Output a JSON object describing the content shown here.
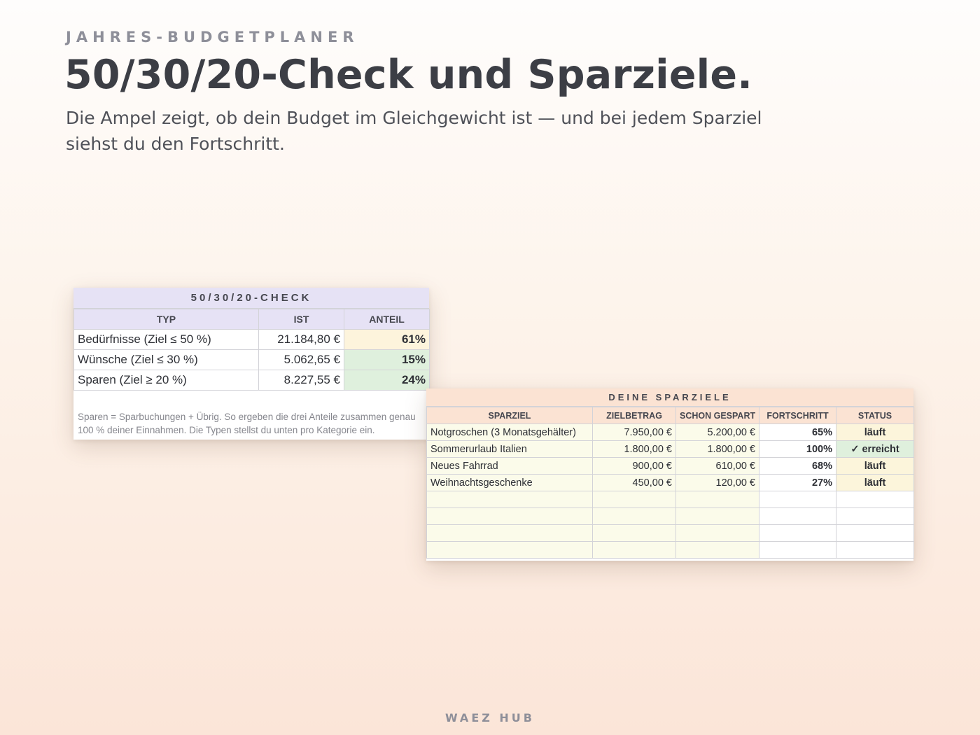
{
  "header": {
    "eyebrow": "JAHRES-BUDGETPLANER",
    "title": "50/30/20-Check und Sparziele.",
    "subtitle": "Die Ampel zeigt, ob dein Budget im Gleichgewicht ist — und bei jedem Sparziel siehst du den Fortschritt."
  },
  "check": {
    "title": "50/30/20-CHECK",
    "columns": [
      "TYP",
      "IST",
      "ANTEIL"
    ],
    "rows": [
      {
        "typ": "Bedürfnisse (Ziel ≤ 50 %)",
        "ist": "21.184,80 €",
        "anteil": "61%",
        "status_color": "#fdf4dc"
      },
      {
        "typ": "Wünsche (Ziel ≤ 30 %)",
        "ist": "5.062,65 €",
        "anteil": "15%",
        "status_color": "#dff0dd"
      },
      {
        "typ": "Sparen (Ziel ≥ 20 %)",
        "ist": "8.227,55 €",
        "anteil": "24%",
        "status_color": "#dff0dd"
      }
    ],
    "note_line1": "Sparen = Sparbuchungen + Übrig. So ergeben die drei Anteile zusammen genau",
    "note_line2": "100 % deiner Einnahmen. Die Typen stellst du unten pro Kategorie ein."
  },
  "goals": {
    "title": "DEINE SPARZIELE",
    "columns": [
      "SPARZIEL",
      "ZIELBETRAG",
      "SCHON GESPART",
      "FORTSCHRITT",
      "STATUS"
    ],
    "rows": [
      {
        "name": "Notgroschen (3 Monatsgehälter)",
        "target": "7.950,00 €",
        "saved": "5.200,00 €",
        "progress": "65%",
        "status": "läuft"
      },
      {
        "name": "Sommerurlaub Italien",
        "target": "1.800,00 €",
        "saved": "1.800,00 €",
        "progress": "100%",
        "status": "✓ erreicht"
      },
      {
        "name": "Neues Fahrrad",
        "target": "900,00 €",
        "saved": "610,00 €",
        "progress": "68%",
        "status": "läuft"
      },
      {
        "name": "Weihnachtsgeschenke",
        "target": "450,00 €",
        "saved": "120,00 €",
        "progress": "27%",
        "status": "läuft"
      }
    ],
    "empty_rows": 4
  },
  "footer": {
    "brand": "WAEZ HUB"
  }
}
